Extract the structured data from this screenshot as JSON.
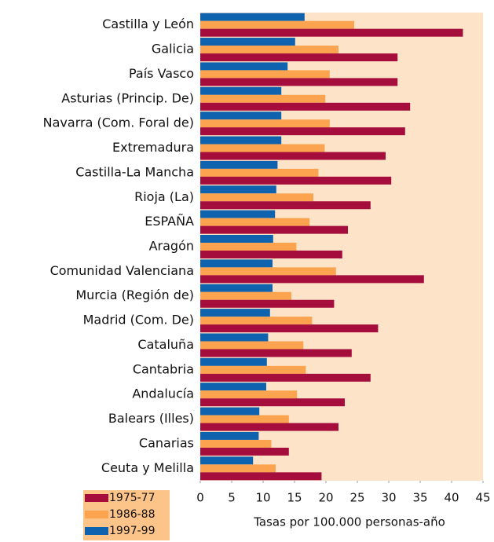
{
  "chart_data": {
    "type": "bar",
    "orientation": "horizontal",
    "categories": [
      "Castilla y León",
      "Galicia",
      "País Vasco",
      "Asturias (Princip. De)",
      "Navarra (Com. Foral de)",
      "Extremadura",
      "Castilla-La Mancha",
      "Rioja (La)",
      "ESPAÑA",
      "Aragón",
      "Comunidad Valenciana",
      "Murcia (Región de)",
      "Madrid (Com. De)",
      "Cataluña",
      "Cantabria",
      "Andalucía",
      "Balears (Illes)",
      "Canarias",
      "Ceuta y Melilla"
    ],
    "series": [
      {
        "name": "1975-77",
        "color": "#a50d3c",
        "values": [
          41.8,
          31.4,
          31.4,
          33.4,
          32.6,
          29.5,
          30.4,
          27.1,
          23.5,
          22.6,
          35.6,
          21.3,
          28.3,
          24.1,
          27.1,
          23,
          22,
          14.1,
          19.3
        ]
      },
      {
        "name": "1986-88",
        "color": "#fba34e",
        "values": [
          24.5,
          22,
          20.6,
          19.9,
          20.6,
          19.8,
          18.8,
          18,
          17.4,
          15.3,
          21.6,
          14.5,
          17.8,
          16.4,
          16.8,
          15.4,
          14.1,
          11.3,
          12
        ]
      },
      {
        "name": "1997-99",
        "color": "#0f62ad",
        "values": [
          16.6,
          15.1,
          13.9,
          12.9,
          12.9,
          12.9,
          12.3,
          12.1,
          11.9,
          11.6,
          11.5,
          11.5,
          11.1,
          10.8,
          10.6,
          10.5,
          9.4,
          9.3,
          8.4
        ]
      }
    ],
    "x_label": "Tasas por 100.000 personas-año",
    "xlim": [
      0,
      45
    ],
    "xticks": [
      0,
      5,
      10,
      15,
      20,
      25,
      30,
      35,
      40,
      45
    ],
    "plot_background": "#fde3c8",
    "legend_background": "#fdc48a",
    "legend_position": "bottom-left"
  }
}
